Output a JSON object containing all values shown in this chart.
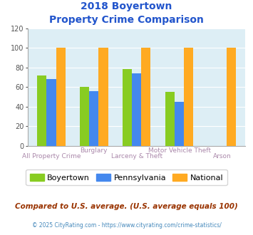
{
  "title_line1": "2018 Boyertown",
  "title_line2": "Property Crime Comparison",
  "boyertown": [
    72,
    60,
    78,
    55,
    0
  ],
  "pennsylvania": [
    68,
    56,
    74,
    45,
    0
  ],
  "national": [
    100,
    100,
    100,
    100,
    100
  ],
  "color_boyertown": "#88cc22",
  "color_pennsylvania": "#4488ee",
  "color_national": "#ffaa22",
  "ylim": [
    0,
    120
  ],
  "yticks": [
    0,
    20,
    40,
    60,
    80,
    100,
    120
  ],
  "title_color": "#2255cc",
  "legend_labels": [
    "Boyertown",
    "Pennsylvania",
    "National"
  ],
  "footnote1": "Compared to U.S. average. (U.S. average equals 100)",
  "footnote2": "© 2025 CityRating.com - https://www.cityrating.com/crime-statistics/",
  "footnote1_color": "#993300",
  "footnote2_color": "#4488bb",
  "bg_color": "#ddeef5",
  "n_groups": 5,
  "bar_width": 0.22,
  "xlabel_bottom": [
    "All Property Crime",
    "",
    "Larceny & Theft",
    "",
    "Arson"
  ],
  "xlabel_top": [
    "",
    "Burglary",
    "",
    "Motor Vehicle Theft",
    ""
  ],
  "xlabelcolor": "#aa88aa"
}
